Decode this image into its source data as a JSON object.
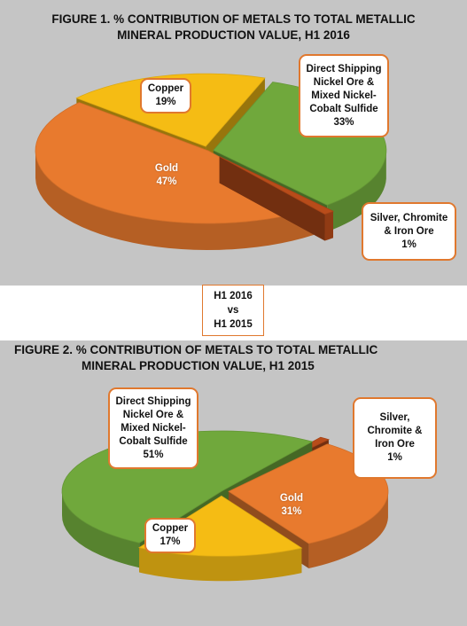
{
  "chart_data": [
    {
      "type": "pie",
      "title": [
        "FIGURE 1.  % CONTRIBUTION OF METALS  TO TOTAL METALLIC",
        "MINERAL PRODUCTION VALUE, H1 2016"
      ],
      "series": [
        {
          "label": [
            "Direct Shipping",
            "Nickel Ore &",
            "Mixed Nickel-",
            "Cobalt Sulfide"
          ],
          "value_label": "33%",
          "value": 33,
          "color": "#70a83c"
        },
        {
          "label": [
            "Silver, Chromite",
            "& Iron Ore"
          ],
          "value_label": "1%",
          "value": 1,
          "color": "#b84c1a"
        },
        {
          "label": [
            "Gold"
          ],
          "value_label": "47%",
          "value": 47,
          "color": "#e87a2e"
        },
        {
          "label": [
            "Copper"
          ],
          "value_label": "19%",
          "value": 19,
          "color": "#f5bc14"
        }
      ]
    },
    {
      "type": "pie",
      "title": [
        "FIGURE 2.  % CONTRIBUTION OF METALS  TO TOTAL METALLIC",
        "MINERAL PRODUCTION VALUE, H1 2015"
      ],
      "series": [
        {
          "label": [
            "Direct Shipping",
            "Nickel Ore &",
            "Mixed Nickel-",
            "Cobalt Sulfide"
          ],
          "value_label": "51%",
          "value": 51,
          "color": "#70a83c"
        },
        {
          "label": [
            "Silver,",
            "Chromite &",
            "Iron Ore"
          ],
          "value_label": "1%",
          "value": 1,
          "color": "#b84c1a"
        },
        {
          "label": [
            "Gold"
          ],
          "value_label": "31%",
          "value": 31,
          "color": "#e87a2e"
        },
        {
          "label": [
            "Copper"
          ],
          "value_label": "17%",
          "value": 17,
          "color": "#f5bc14"
        }
      ]
    }
  ],
  "comparison_label": [
    "H1 2016",
    "vs",
    "H1 2015"
  ]
}
